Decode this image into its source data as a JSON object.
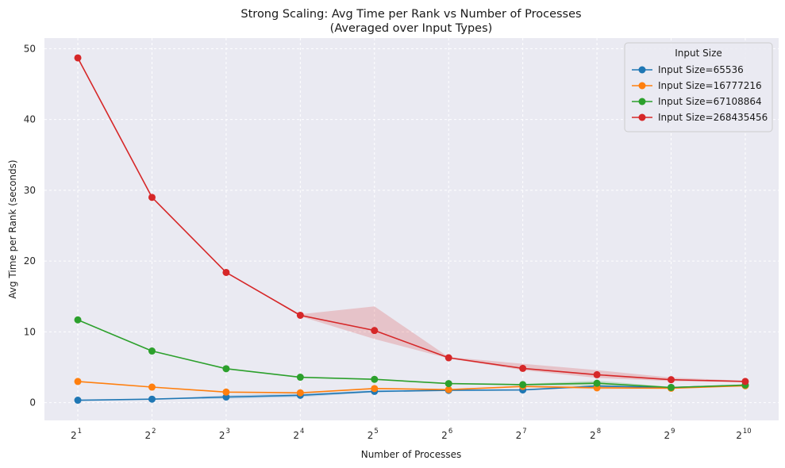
{
  "chart_data": {
    "type": "line",
    "title": "Strong Scaling: Avg Time per Rank vs Number of Processes",
    "subtitle": "(Averaged over Input Types)",
    "xlabel": "Number of Processes",
    "ylabel": "Avg Time per Rank (seconds)",
    "x_scale": "log2",
    "x": [
      2,
      4,
      8,
      16,
      32,
      64,
      128,
      256,
      512,
      1024
    ],
    "x_tick_base": "2",
    "x_tick_exponents": [
      "1",
      "2",
      "3",
      "4",
      "5",
      "6",
      "7",
      "8",
      "9",
      "10"
    ],
    "ylim": [
      -2.5,
      51.5
    ],
    "y_ticks": [
      0,
      10,
      20,
      30,
      40,
      50
    ],
    "grid": true,
    "legend": {
      "title": "Input Size",
      "position": "top-right"
    },
    "series": [
      {
        "name": "Input Size=65536",
        "color": "#1f77b4",
        "values": [
          0.35,
          0.5,
          0.8,
          1.05,
          1.6,
          1.75,
          1.8,
          2.35,
          2.15,
          2.45
        ],
        "band_low": [
          0.35,
          0.5,
          0.55,
          0.8,
          1.45,
          1.7,
          1.75,
          2.25,
          2.1,
          2.4
        ],
        "band_high": [
          0.35,
          0.5,
          1.05,
          1.3,
          1.75,
          1.8,
          1.85,
          2.45,
          2.2,
          2.5
        ]
      },
      {
        "name": "Input Size=16777216",
        "color": "#ff7f0e",
        "values": [
          3.0,
          2.2,
          1.5,
          1.4,
          2.0,
          1.85,
          2.3,
          2.1,
          2.05,
          2.4
        ],
        "band_low": [
          3.0,
          2.2,
          1.5,
          1.4,
          1.9,
          1.8,
          2.2,
          1.9,
          2.0,
          2.35
        ],
        "band_high": [
          3.0,
          2.2,
          1.5,
          1.4,
          2.1,
          1.9,
          2.4,
          2.3,
          2.1,
          2.45
        ]
      },
      {
        "name": "Input Size=67108864",
        "color": "#2ca02c",
        "values": [
          11.7,
          7.3,
          4.8,
          3.6,
          3.3,
          2.7,
          2.55,
          2.75,
          2.15,
          2.5
        ],
        "band_low": [
          11.7,
          7.3,
          4.8,
          3.6,
          3.3,
          2.65,
          2.45,
          2.4,
          2.05,
          2.45
        ],
        "band_high": [
          11.7,
          7.3,
          4.8,
          3.6,
          3.3,
          2.75,
          2.65,
          3.1,
          2.25,
          2.55
        ]
      },
      {
        "name": "Input Size=268435456",
        "color": "#d62728",
        "values": [
          48.7,
          29.0,
          18.4,
          12.35,
          10.2,
          6.35,
          4.85,
          3.95,
          3.25,
          3.0
        ],
        "band_low": [
          48.7,
          29.0,
          18.4,
          12.2,
          9.0,
          6.25,
          4.6,
          3.5,
          3.05,
          2.9
        ],
        "band_high": [
          48.7,
          29.0,
          18.4,
          12.5,
          13.6,
          6.45,
          5.5,
          4.6,
          3.55,
          3.1
        ]
      }
    ]
  }
}
